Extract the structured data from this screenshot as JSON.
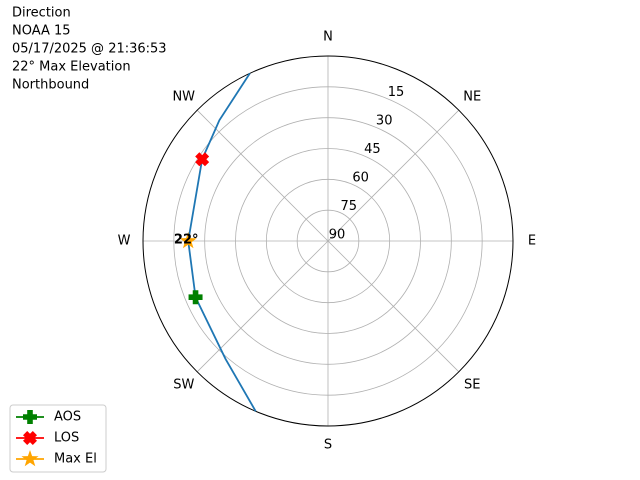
{
  "chart_data": {
    "type": "polar",
    "title_lines": [
      "Direction",
      "NOAA 15",
      "05/17/2025 @ 21:36:53",
      "22° Max Elevation",
      "Northbound"
    ],
    "rlim": [
      90,
      0
    ],
    "rticks": [
      15,
      30,
      45,
      60,
      75,
      90
    ],
    "thetaticks": [
      {
        "value": 0,
        "label": "N"
      },
      {
        "value": 45,
        "label": "NE"
      },
      {
        "value": 90,
        "label": "E"
      },
      {
        "value": 135,
        "label": "SE"
      },
      {
        "value": 180,
        "label": "S"
      },
      {
        "value": 225,
        "label": "SW"
      },
      {
        "value": 270,
        "label": "W"
      },
      {
        "value": 315,
        "label": "NW"
      }
    ],
    "grid": true,
    "track": {
      "color": "#1f77b4",
      "azimuth": [
        203,
        221,
        247,
        270,
        303,
        318,
        335
      ],
      "elevation": [
        0,
        14,
        20,
        22,
        17,
        11,
        0
      ]
    },
    "series": [
      {
        "name": "AOS",
        "color": "#008000",
        "marker": "plus",
        "azimuth": [
          247
        ],
        "values": [
          20
        ]
      },
      {
        "name": "LOS",
        "color": "#ff0000",
        "marker": "x",
        "azimuth": [
          303
        ],
        "values": [
          17
        ]
      },
      {
        "name": "Max El",
        "color": "#ffa500",
        "marker": "star",
        "azimuth": [
          270
        ],
        "values": [
          22
        ],
        "value_labels": [
          "22°"
        ]
      }
    ],
    "legend": "lower left"
  }
}
